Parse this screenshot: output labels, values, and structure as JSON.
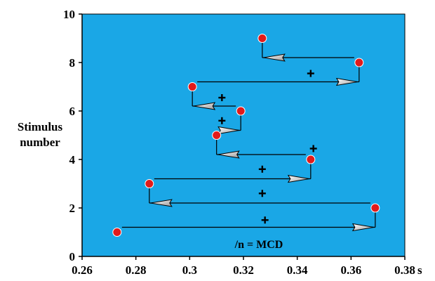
{
  "chart_data": {
    "type": "scatter",
    "title": "",
    "xlabel": "",
    "x_unit": "s",
    "ylabel": "Stimulus number",
    "ylabel_lines": [
      "Stimulus",
      "number"
    ],
    "xlim": [
      0.26,
      0.38
    ],
    "ylim": [
      0,
      10
    ],
    "x_ticks": [
      "0.26",
      "0.28",
      "0.3",
      "0.32",
      "0.34",
      "0.36",
      "0.38"
    ],
    "y_ticks": [
      "0",
      "2",
      "4",
      "6",
      "8",
      "10"
    ],
    "grid": false,
    "background_color": "#1aa7e6",
    "point_color": "#e21a1a",
    "series": [
      {
        "points": [
          {
            "x": 0.273,
            "y": 1
          },
          {
            "x": 0.369,
            "y": 2
          },
          {
            "x": 0.285,
            "y": 3
          },
          {
            "x": 0.345,
            "y": 4
          },
          {
            "x": 0.31,
            "y": 5
          },
          {
            "x": 0.319,
            "y": 6
          },
          {
            "x": 0.301,
            "y": 7
          },
          {
            "x": 0.363,
            "y": 8
          },
          {
            "x": 0.327,
            "y": 9
          }
        ]
      }
    ],
    "midpoints": [
      {
        "x": 0.328,
        "y": 1.5
      },
      {
        "x": 0.327,
        "y": 2.6
      },
      {
        "x": 0.327,
        "y": 3.6
      },
      {
        "x": 0.346,
        "y": 4.45
      },
      {
        "x": 0.312,
        "y": 5.6
      },
      {
        "x": 0.312,
        "y": 6.55
      },
      {
        "x": 0.345,
        "y": 7.55
      }
    ],
    "annotation": "/n = MCD"
  }
}
